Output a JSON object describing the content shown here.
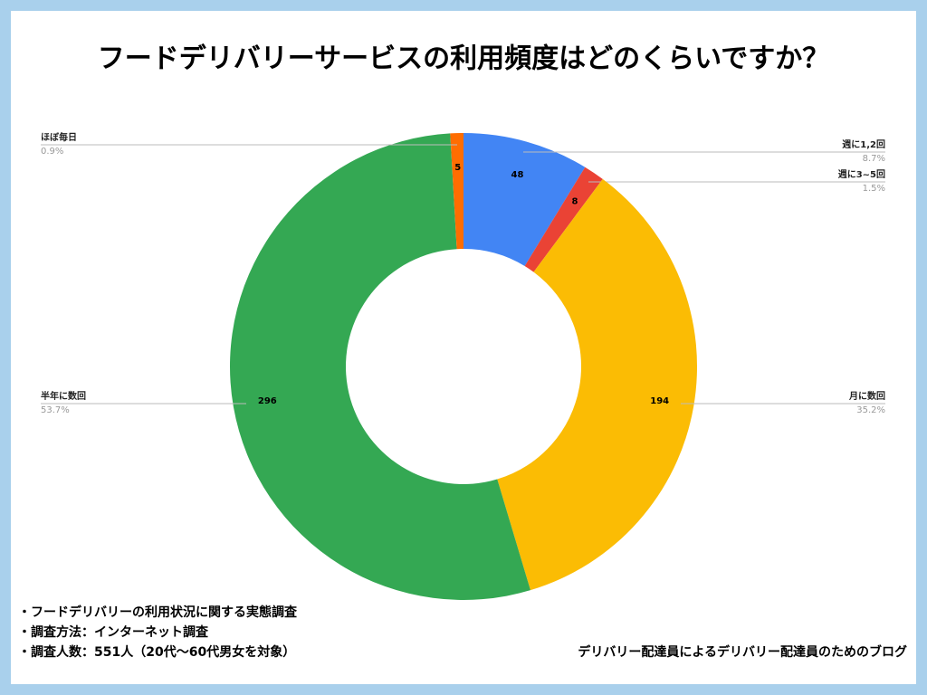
{
  "chart_data": {
    "type": "donut",
    "title": "フードデリバリーサービスの利用頻度はどのくらいですか？",
    "categories": [
      "週に1,2回",
      "週に3~5回",
      "月に数回",
      "半年に数回",
      "ほぼ毎日"
    ],
    "values": [
      48,
      8,
      194,
      296,
      5
    ],
    "percent_labels": [
      "8.7%",
      "1.5%",
      "35.2%",
      "53.7%",
      "0.9%"
    ],
    "colors": [
      "#4285f4",
      "#ea4335",
      "#fbbc04",
      "#34a853",
      "#ff6d01"
    ],
    "notes": [
      "・フードデリバリーの利用状況に関する実態調査",
      "・調査方法：インターネット調査",
      "・調査人数：551人（20代〜60代男女を対象）"
    ],
    "credit": "デリバリー配達員によるデリバリー配達員のためのブログ"
  }
}
